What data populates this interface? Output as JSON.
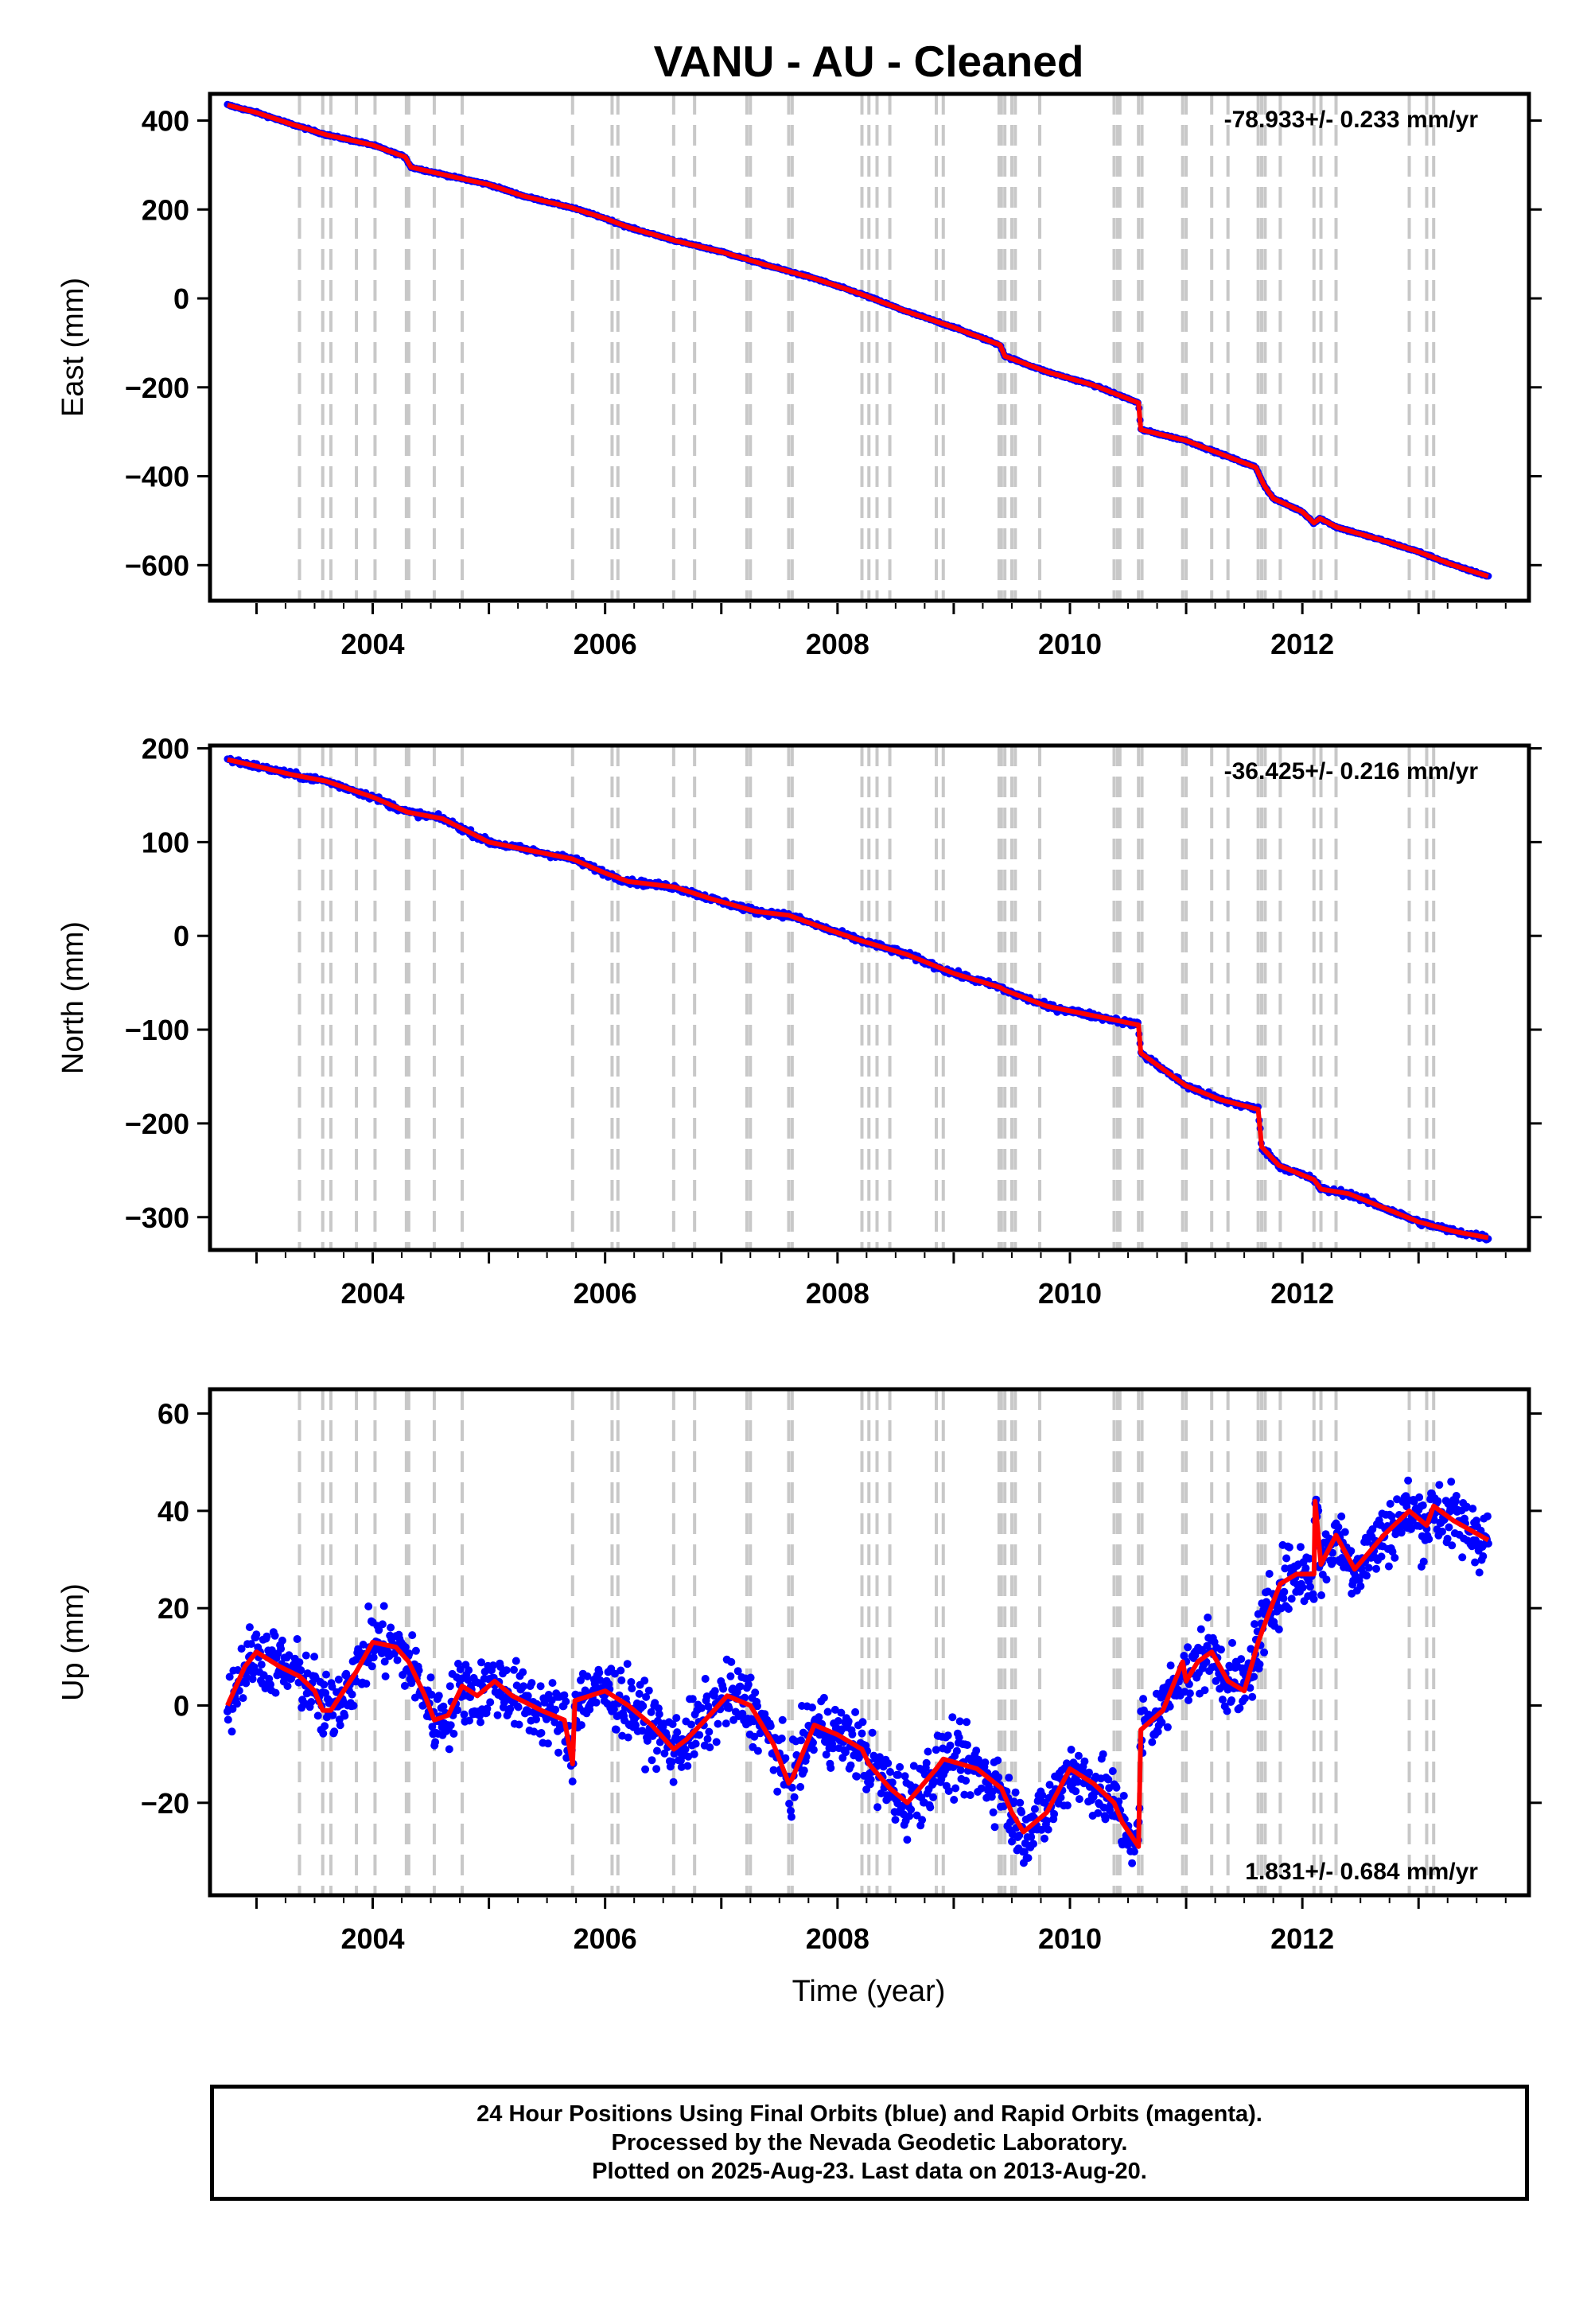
{
  "title": "VANU  - AU - Cleaned",
  "colors": {
    "data": "#0000ff",
    "model": "#ff0000",
    "steps": "#c8c8c8",
    "frame": "#000000"
  },
  "x_axis": {
    "label": "Time (year)",
    "range": [
      2002.6,
      2013.95
    ],
    "ticks": [
      2004,
      2006,
      2008,
      2010,
      2012
    ],
    "tick_labels": [
      "2004",
      "2006",
      "2008",
      "2010",
      "2012"
    ]
  },
  "step_epochs": [
    2003.37,
    2003.57,
    2003.64,
    2003.86,
    2004.02,
    2004.29,
    2004.31,
    2004.53,
    2004.77,
    2005.72,
    2006.06,
    2006.11,
    2006.59,
    2006.77,
    2007.22,
    2007.25,
    2007.58,
    2007.61,
    2008.21,
    2008.27,
    2008.34,
    2008.45,
    2008.85,
    2008.91,
    2009.39,
    2009.41,
    2009.44,
    2009.5,
    2009.53,
    2009.74,
    2010.38,
    2010.41,
    2010.43,
    2010.59,
    2010.62,
    2010.97,
    2011.0,
    2011.22,
    2011.36,
    2011.62,
    2011.65,
    2011.68,
    2011.81,
    2012.1,
    2012.16,
    2012.29,
    2012.92,
    2013.07,
    2013.13
  ],
  "panels": [
    {
      "id": "east",
      "ylabel": "East (mm)",
      "rate_text": "-78.933+/- 0.233 mm/yr",
      "rate_position": "top-right",
      "ylim": [
        -680,
        460
      ],
      "yticks": [
        400,
        200,
        0,
        -200,
        -400,
        -600
      ],
      "ytick_labels": [
        "400",
        "200",
        "0",
        "−200",
        "−400",
        "−600"
      ]
    },
    {
      "id": "north",
      "ylabel": "North (mm)",
      "rate_text": "-36.425+/- 0.216 mm/yr",
      "rate_position": "top-right",
      "ylim": [
        -335,
        203
      ],
      "yticks": [
        200,
        100,
        0,
        -100,
        -200,
        -300
      ],
      "ytick_labels": [
        "200",
        "100",
        "0",
        "−100",
        "−200",
        "−300"
      ]
    },
    {
      "id": "up",
      "ylabel": "Up (mm)",
      "rate_text": "1.831+/- 0.684 mm/yr",
      "rate_position": "bottom-right",
      "ylim": [
        -39,
        65
      ],
      "yticks": [
        60,
        40,
        20,
        0,
        -20
      ],
      "ytick_labels": [
        "60",
        "40",
        "20",
        "0",
        "−20"
      ]
    }
  ],
  "chart_data": [
    {
      "type": "scatter",
      "title": "VANU  - AU - Cleaned",
      "ylabel": "East (mm)",
      "xlabel": "",
      "xlim": [
        2002.6,
        2013.95
      ],
      "ylim": [
        -680,
        460
      ],
      "annotation": "-78.933+/- 0.233 mm/yr",
      "model_line": {
        "x": [
          2002.75,
          2003.0,
          2003.3,
          2003.6,
          2004.0,
          2004.28,
          2004.33,
          2004.7,
          2005.0,
          2005.3,
          2005.7,
          2006.0,
          2006.2,
          2006.6,
          2007.0,
          2007.4,
          2007.8,
          2008.2,
          2008.6,
          2009.0,
          2009.4,
          2009.44,
          2009.8,
          2010.2,
          2010.59,
          2010.61,
          2011.0,
          2011.3,
          2011.6,
          2011.67,
          2011.75,
          2012.0,
          2012.1,
          2012.15,
          2012.3,
          2012.7,
          2013.0,
          2013.3,
          2013.6
        ],
        "y": [
          435,
          418,
          392,
          368,
          345,
          318,
          295,
          273,
          256,
          230,
          205,
          180,
          160,
          130,
          105,
          74,
          45,
          10,
          -30,
          -65,
          -105,
          -130,
          -165,
          -195,
          -235,
          -295,
          -320,
          -350,
          -380,
          -420,
          -450,
          -480,
          -505,
          -495,
          -515,
          -545,
          -570,
          -600,
          -625
        ]
      }
    },
    {
      "type": "scatter",
      "title": "",
      "ylabel": "North (mm)",
      "xlabel": "",
      "xlim": [
        2002.6,
        2013.95
      ],
      "ylim": [
        -335,
        203
      ],
      "annotation": "-36.425+/- 0.216 mm/yr",
      "model_line": {
        "x": [
          2002.75,
          2003.0,
          2003.3,
          2003.6,
          2004.0,
          2004.3,
          2004.6,
          2005.0,
          2005.4,
          2005.72,
          2006.0,
          2006.2,
          2006.6,
          2006.9,
          2007.3,
          2007.58,
          2007.8,
          2008.2,
          2008.6,
          2009.0,
          2009.4,
          2009.44,
          2009.8,
          2010.2,
          2010.59,
          2010.61,
          2011.0,
          2011.3,
          2011.62,
          2011.65,
          2011.8,
          2012.1,
          2012.16,
          2012.4,
          2012.7,
          2013.0,
          2013.3,
          2013.6
        ],
        "y": [
          188,
          181,
          172,
          165,
          148,
          132,
          125,
          100,
          90,
          82,
          67,
          58,
          52,
          40,
          26,
          22,
          12,
          -5,
          -20,
          -40,
          -55,
          -58,
          -75,
          -85,
          -95,
          -125,
          -160,
          -175,
          -185,
          -225,
          -245,
          -260,
          -270,
          -275,
          -290,
          -305,
          -315,
          -322
        ]
      }
    },
    {
      "type": "scatter",
      "title": "",
      "ylabel": "Up (mm)",
      "xlabel": "Time (year)",
      "xlim": [
        2002.6,
        2013.95
      ],
      "ylim": [
        -39,
        65
      ],
      "annotation": "1.831+/- 0.684 mm/yr",
      "model_line": {
        "x": [
          2002.75,
          2002.9,
          2003.0,
          2003.2,
          2003.37,
          2003.5,
          2003.57,
          2003.64,
          2003.75,
          2003.86,
          2004.0,
          2004.2,
          2004.31,
          2004.45,
          2004.53,
          2004.65,
          2004.77,
          2004.9,
          2005.05,
          2005.2,
          2005.45,
          2005.65,
          2005.72,
          2005.74,
          2006.0,
          2006.2,
          2006.4,
          2006.59,
          2006.7,
          2006.9,
          2007.05,
          2007.25,
          2007.45,
          2007.58,
          2007.61,
          2007.8,
          2008.0,
          2008.21,
          2008.27,
          2008.45,
          2008.6,
          2008.85,
          2008.91,
          2009.2,
          2009.41,
          2009.5,
          2009.6,
          2009.8,
          2010.0,
          2010.2,
          2010.38,
          2010.45,
          2010.59,
          2010.61,
          2010.8,
          2010.97,
          2011.0,
          2011.1,
          2011.22,
          2011.36,
          2011.5,
          2011.62,
          2011.68,
          2011.81,
          2011.95,
          2012.1,
          2012.11,
          2012.16,
          2012.29,
          2012.45,
          2012.7,
          2012.92,
          2013.07,
          2013.13,
          2013.3,
          2013.6
        ],
        "y": [
          0,
          8,
          11,
          8,
          6,
          3,
          -1,
          -1,
          3,
          7,
          13,
          12,
          9,
          2,
          -3,
          -2,
          4,
          2,
          5,
          2,
          -1,
          -3,
          -12,
          1,
          3,
          0,
          -4,
          -9,
          -7,
          -2,
          2,
          0,
          -8,
          -16,
          -15,
          -4,
          -6,
          -9,
          -12,
          -17,
          -20,
          -13,
          -11,
          -13,
          -17,
          -22,
          -26,
          -22,
          -13,
          -16,
          -20,
          -24,
          -29,
          -5,
          -1,
          9,
          5,
          9,
          11,
          5,
          3,
          13,
          17,
          25,
          27,
          27,
          42,
          29,
          35,
          28,
          35,
          40,
          37,
          41,
          38,
          34
        ]
      }
    }
  ],
  "footer": {
    "line1": "24 Hour Positions Using Final Orbits (blue) and Rapid Orbits (magenta).",
    "line2": "Processed by the Nevada Geodetic Laboratory.",
    "line3": "Plotted on 2025-Aug-23. Last data on 2013-Aug-20."
  }
}
